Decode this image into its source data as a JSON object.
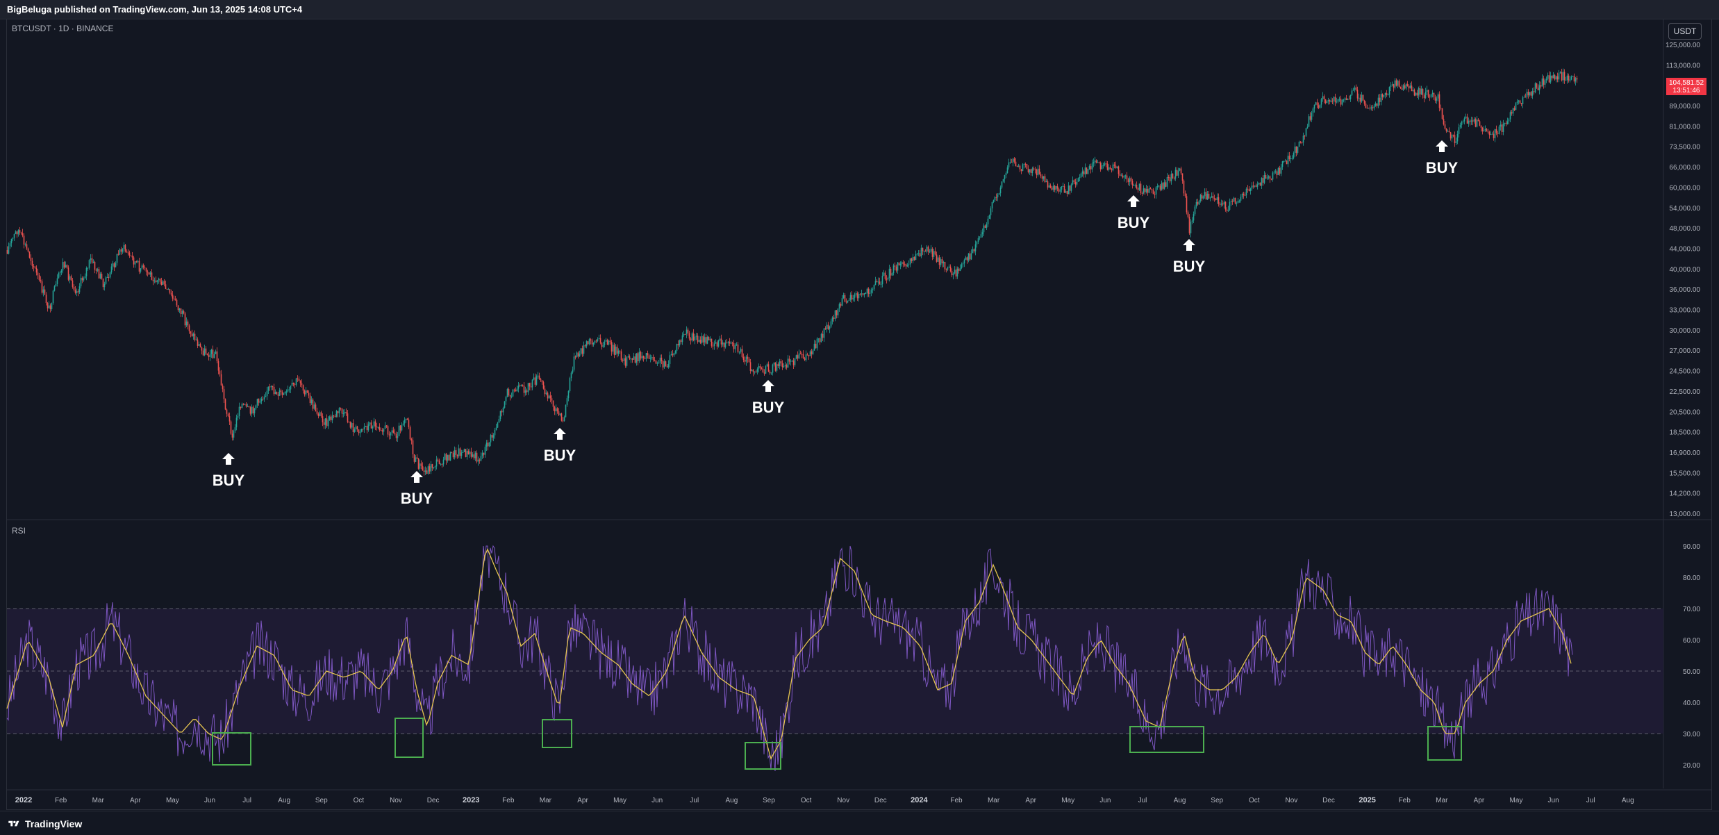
{
  "header": {
    "published_text": "BigBeluga published on TradingView.com, Jun 13, 2025 14:08 UTC+4"
  },
  "chart": {
    "symbol_label": "BTCUSDT · 1D · BINANCE",
    "currency_button": "USDT",
    "current_price": "104,581.52",
    "countdown": "13:51:46",
    "price_ticks": [
      "125,000.00",
      "113,000.00",
      "99,000.00",
      "89,000.00",
      "81,000.00",
      "73,500.00",
      "66,000.00",
      "60,000.00",
      "54,000.00",
      "48,000.00",
      "44,000.00",
      "40,000.00",
      "36,000.00",
      "33,000.00",
      "30,000.00",
      "27,000.00",
      "24,500.00",
      "22,500.00",
      "20,500.00",
      "18,500.00",
      "16,900.00",
      "15,500.00",
      "14,200.00",
      "13,000.00"
    ],
    "buy_label": "BUY",
    "colors": {
      "up": "#26a69a",
      "down": "#ef5350",
      "price_tag": "#f23645",
      "rsi": "#7e57c2",
      "rsi_ma": "#e5c54f",
      "box": "#4caf50"
    }
  },
  "rsi": {
    "label": "RSI",
    "ticks": [
      "90.00",
      "80.00",
      "70.00",
      "60.00",
      "50.00",
      "40.00",
      "30.00",
      "20.00"
    ]
  },
  "time_axis": [
    "2022",
    "Feb",
    "Mar",
    "Apr",
    "May",
    "Jun",
    "Jul",
    "Aug",
    "Sep",
    "Oct",
    "Nov",
    "Dec",
    "2023",
    "Feb",
    "Mar",
    "Apr",
    "May",
    "Jun",
    "Jul",
    "Aug",
    "Sep",
    "Oct",
    "Nov",
    "Dec",
    "2024",
    "Feb",
    "Mar",
    "Apr",
    "May",
    "Jun",
    "Jul",
    "Aug",
    "Sep",
    "Oct",
    "Nov",
    "Dec",
    "2025",
    "Feb",
    "Mar",
    "Apr",
    "May",
    "Jun",
    "Jul",
    "Aug"
  ],
  "footer": {
    "brand": "TradingView"
  }
}
